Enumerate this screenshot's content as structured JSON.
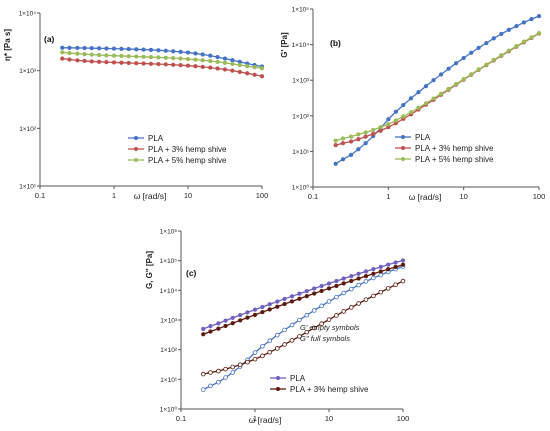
{
  "colors": {
    "pla": "#4472C4",
    "pla3": "#C0504D",
    "pla5": "#9BBB59",
    "pla3_panel_c": "#5C1A0E",
    "pla_gpp_c": "#7060C0"
  },
  "chart_data": [
    {
      "type": "line",
      "panel_label": "(a)",
      "ylabel": "η* [Pa s]",
      "xlabel": "ω [rad/s]",
      "xscale": "log",
      "yscale": "log",
      "xlim": [
        0.1,
        100
      ],
      "ylim": [
        10,
        10000
      ],
      "xticks": [
        "0.1",
        "1",
        "10",
        "100"
      ],
      "yticks": [
        "1×10¹",
        "1×10²",
        "1×10³",
        "1×10⁴"
      ],
      "legend": "center",
      "series": [
        {
          "name": "PLA",
          "color": "#4472C4",
          "x": [
            0.2,
            0.25,
            0.32,
            0.4,
            0.5,
            0.63,
            0.79,
            1,
            1.26,
            1.58,
            2,
            2.51,
            3.16,
            3.98,
            5.01,
            6.31,
            7.94,
            10,
            12.6,
            15.8,
            20,
            25.1,
            31.6,
            39.8,
            50.1,
            63.1,
            79.4,
            100
          ],
          "y": [
            2500,
            2490,
            2480,
            2470,
            2455,
            2440,
            2425,
            2410,
            2390,
            2370,
            2345,
            2320,
            2290,
            2255,
            2215,
            2170,
            2120,
            2060,
            1990,
            1910,
            1820,
            1720,
            1620,
            1520,
            1420,
            1330,
            1250,
            1180
          ]
        },
        {
          "name": "PLA + 3% hemp shive",
          "color": "#C0504D",
          "x": [
            0.2,
            0.25,
            0.32,
            0.4,
            0.5,
            0.63,
            0.79,
            1,
            1.26,
            1.58,
            2,
            2.51,
            3.16,
            3.98,
            5.01,
            6.31,
            7.94,
            10,
            12.6,
            15.8,
            20,
            25.1,
            31.6,
            39.8,
            50.1,
            63.1,
            79.4,
            100
          ],
          "y": [
            1620,
            1560,
            1510,
            1475,
            1445,
            1425,
            1405,
            1390,
            1375,
            1360,
            1345,
            1330,
            1315,
            1300,
            1285,
            1265,
            1245,
            1220,
            1195,
            1165,
            1130,
            1090,
            1050,
            1000,
            950,
            900,
            850,
            800
          ]
        },
        {
          "name": "PLA + 5% hemp shive",
          "color": "#9BBB59",
          "x": [
            0.2,
            0.25,
            0.32,
            0.4,
            0.5,
            0.63,
            0.79,
            1,
            1.26,
            1.58,
            2,
            2.51,
            3.16,
            3.98,
            5.01,
            6.31,
            7.94,
            10,
            12.6,
            15.8,
            20,
            25.1,
            31.6,
            39.8,
            50.1,
            63.1,
            79.4,
            100
          ],
          "y": [
            2080,
            2020,
            1970,
            1930,
            1895,
            1865,
            1840,
            1820,
            1800,
            1780,
            1760,
            1740,
            1720,
            1700,
            1675,
            1650,
            1625,
            1590,
            1555,
            1515,
            1470,
            1420,
            1365,
            1310,
            1255,
            1200,
            1150,
            1100
          ]
        }
      ]
    },
    {
      "type": "line",
      "panel_label": "(b)",
      "ylabel": "G' [Pa]",
      "xlabel": "ω [rad/s]",
      "xscale": "log",
      "yscale": "log",
      "xlim": [
        0.1,
        100
      ],
      "ylim": [
        1,
        100000
      ],
      "xticks": [
        "0.1",
        "1",
        "10",
        "100"
      ],
      "yticks": [
        "1×10⁰",
        "1×10¹",
        "1×10²",
        "1×10³",
        "1×10⁴",
        "1×10⁵"
      ],
      "legend": "bottom-center",
      "series": [
        {
          "name": "PLA",
          "color": "#4472C4",
          "x": [
            0.2,
            0.25,
            0.32,
            0.4,
            0.5,
            0.63,
            0.79,
            1,
            1.26,
            1.58,
            2,
            2.51,
            3.16,
            3.98,
            5.01,
            6.31,
            7.94,
            10,
            12.6,
            15.8,
            20,
            25.1,
            31.6,
            39.8,
            50.1,
            63.1,
            79.4,
            100
          ],
          "y": [
            4.5,
            6,
            8,
            11.5,
            17,
            27,
            45,
            80,
            130,
            200,
            310,
            460,
            680,
            1000,
            1450,
            2100,
            3000,
            4200,
            5900,
            8100,
            11000,
            15000,
            20000,
            26000,
            33000,
            42000,
            52000,
            63000
          ]
        },
        {
          "name": "PLA + 3% hemp shive",
          "color": "#C0504D",
          "x": [
            0.2,
            0.25,
            0.32,
            0.4,
            0.5,
            0.63,
            0.79,
            1,
            1.26,
            1.58,
            2,
            2.51,
            3.16,
            3.98,
            5.01,
            6.31,
            7.94,
            10,
            12.6,
            15.8,
            20,
            25.1,
            31.6,
            39.8,
            50.1,
            63.1,
            79.4,
            100
          ],
          "y": [
            15,
            17,
            19,
            22,
            26,
            31,
            38,
            48,
            62,
            82,
            110,
            150,
            205,
            280,
            390,
            540,
            750,
            1030,
            1420,
            1950,
            2650,
            3600,
            4850,
            6500,
            8700,
            11600,
            15400,
            20500
          ]
        },
        {
          "name": "PLA + 5% hemp shive",
          "color": "#9BBB59",
          "x": [
            0.2,
            0.25,
            0.32,
            0.4,
            0.5,
            0.63,
            0.79,
            1,
            1.26,
            1.58,
            2,
            2.51,
            3.16,
            3.98,
            5.01,
            6.31,
            7.94,
            10,
            12.6,
            15.8,
            20,
            25.1,
            31.6,
            39.8,
            50.1,
            63.1,
            79.4,
            100
          ],
          "y": [
            20,
            23,
            26,
            30,
            34,
            40,
            48,
            58,
            74,
            96,
            126,
            168,
            225,
            305,
            415,
            570,
            780,
            1070,
            1470,
            2010,
            2740,
            3720,
            5020,
            6750,
            9050,
            12100,
            16000,
            21000
          ]
        }
      ]
    },
    {
      "type": "line",
      "panel_label": "(c)",
      "ylabel": "G, G'' [Pa]",
      "xlabel": "ω [rad/s]",
      "xscale": "log",
      "yscale": "log",
      "xlim": [
        0.1,
        100
      ],
      "ylim": [
        1,
        1000000
      ],
      "xticks": [
        "0.1",
        "1",
        "10",
        "100"
      ],
      "yticks": [
        "1×10⁰",
        "1×10¹",
        "1×10²",
        "1×10³",
        "1×10⁴",
        "1×10⁵",
        "1×10⁶"
      ],
      "annotations": [
        "G' empty symbols",
        "G'' full symbols"
      ],
      "legend": "bottom-center",
      "series": [
        {
          "name": "PLA",
          "color": "#7060C0",
          "marker": "full",
          "x": [
            0.2,
            0.25,
            0.32,
            0.4,
            0.5,
            0.63,
            0.79,
            1,
            1.26,
            1.58,
            2,
            2.51,
            3.16,
            3.98,
            5.01,
            6.31,
            7.94,
            10,
            12.6,
            15.8,
            20,
            25.1,
            31.6,
            39.8,
            50.1,
            63.1,
            79.4,
            100
          ],
          "y": [
            500,
            620,
            770,
            950,
            1180,
            1460,
            1800,
            2230,
            2750,
            3400,
            4180,
            5130,
            6290,
            7700,
            9400,
            11500,
            14000,
            17000,
            20600,
            24900,
            30000,
            36100,
            43300,
            51800,
            61800,
            73400,
            86800,
            102000
          ]
        },
        {
          "name": "PLA",
          "color": "#4472C4",
          "marker": "empty",
          "x": [
            0.2,
            0.25,
            0.32,
            0.4,
            0.5,
            0.63,
            0.79,
            1,
            1.26,
            1.58,
            2,
            2.51,
            3.16,
            3.98,
            5.01,
            6.31,
            7.94,
            10,
            12.6,
            15.8,
            20,
            25.1,
            31.6,
            39.8,
            50.1,
            63.1,
            79.4,
            100
          ],
          "y": [
            4.5,
            6,
            8,
            11.5,
            17,
            27,
            45,
            80,
            130,
            200,
            310,
            460,
            680,
            1000,
            1450,
            2100,
            3000,
            4200,
            5900,
            8100,
            11000,
            15000,
            20000,
            26000,
            33000,
            42000,
            52000,
            63000
          ]
        },
        {
          "name": "PLA + 3% hemp shive",
          "color": "#5C1A0E",
          "marker": "full",
          "x": [
            0.2,
            0.25,
            0.32,
            0.4,
            0.5,
            0.63,
            0.79,
            1,
            1.26,
            1.58,
            2,
            2.51,
            3.16,
            3.98,
            5.01,
            6.31,
            7.94,
            10,
            12.6,
            15.8,
            20,
            25.1,
            31.6,
            39.8,
            50.1,
            63.1,
            79.4,
            100
          ],
          "y": [
            330,
            410,
            510,
            630,
            780,
            970,
            1200,
            1490,
            1840,
            2270,
            2800,
            3450,
            4240,
            5200,
            6380,
            7810,
            9540,
            11600,
            14100,
            17100,
            20700,
            25000,
            30100,
            36100,
            43200,
            51600,
            61400,
            72800
          ]
        },
        {
          "name": "PLA + 3% hemp shive",
          "color": "#5C1A0E",
          "marker": "empty",
          "x": [
            0.2,
            0.25,
            0.32,
            0.4,
            0.5,
            0.63,
            0.79,
            1,
            1.26,
            1.58,
            2,
            2.51,
            3.16,
            3.98,
            5.01,
            6.31,
            7.94,
            10,
            12.6,
            15.8,
            20,
            25.1,
            31.6,
            39.8,
            50.1,
            63.1,
            79.4,
            100
          ],
          "y": [
            15,
            17,
            19,
            22,
            26,
            31,
            38,
            48,
            62,
            82,
            110,
            150,
            205,
            280,
            390,
            540,
            750,
            1030,
            1420,
            1950,
            2650,
            3600,
            4850,
            6500,
            8700,
            11600,
            15400,
            20500
          ]
        }
      ]
    }
  ]
}
